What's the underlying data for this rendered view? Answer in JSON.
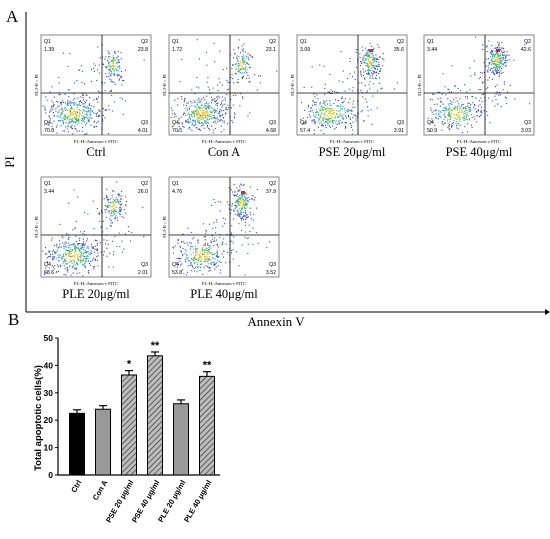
{
  "panel_labels": {
    "a": "A",
    "b": "B"
  },
  "flow": {
    "y_axis_label": "PI",
    "x_axis_label": "Annexin V",
    "plot_x_label": "FL-H::Annexon v FITC",
    "plot_y_label": "FL3-H :: PI",
    "quadrant_names": [
      "Q1",
      "Q2",
      "Q3",
      "Q4"
    ],
    "plots": [
      {
        "name": "Ctrl",
        "q1": "1.39",
        "q2": "23.8",
        "q3": "4.01",
        "q4": "70.8"
      },
      {
        "name": "Con A",
        "q1": "1.72",
        "q2": "23.1",
        "q3": "4.68",
        "q4": "70.5"
      },
      {
        "name": "PSE 20μg/ml",
        "q1": "3.09",
        "q2": "35.6",
        "q3": "3.91",
        "q4": "57.4"
      },
      {
        "name": "PSE 40μg/ml",
        "q1": "3.44",
        "q2": "42.6",
        "q3": "3.03",
        "q4": "50.9"
      },
      {
        "name": "PLE 20μg/ml",
        "q1": "3.44",
        "q2": "26.0",
        "q3": "2.01",
        "q4": "68.6"
      },
      {
        "name": "PLE 40μg/ml",
        "q1": "4.76",
        "q2": "37.9",
        "q3": "3.52",
        "q4": "53.8"
      }
    ]
  },
  "chart_data": {
    "type": "bar",
    "ylabel": "Total apoptotic cells(%)",
    "ylim": [
      0,
      50
    ],
    "yticks": [
      "0",
      "10",
      "20",
      "30",
      "40",
      "50"
    ],
    "categories": [
      "Ctrl",
      "Con A",
      "PSE 20 μg/ml",
      "PSE 40 μg/ml",
      "PLE 20 μg/ml",
      "PLE 40 μg/ml"
    ],
    "values": [
      22.5,
      24.0,
      36.5,
      43.5,
      26.0,
      36.0
    ],
    "errors": [
      1.3,
      1.3,
      1.6,
      1.4,
      1.4,
      1.7
    ],
    "significance": [
      "",
      "",
      "*",
      "**",
      "",
      "**"
    ],
    "fills": [
      "#000000",
      "#999999",
      "hatch",
      "hatch",
      "#999999",
      "hatch"
    ]
  }
}
